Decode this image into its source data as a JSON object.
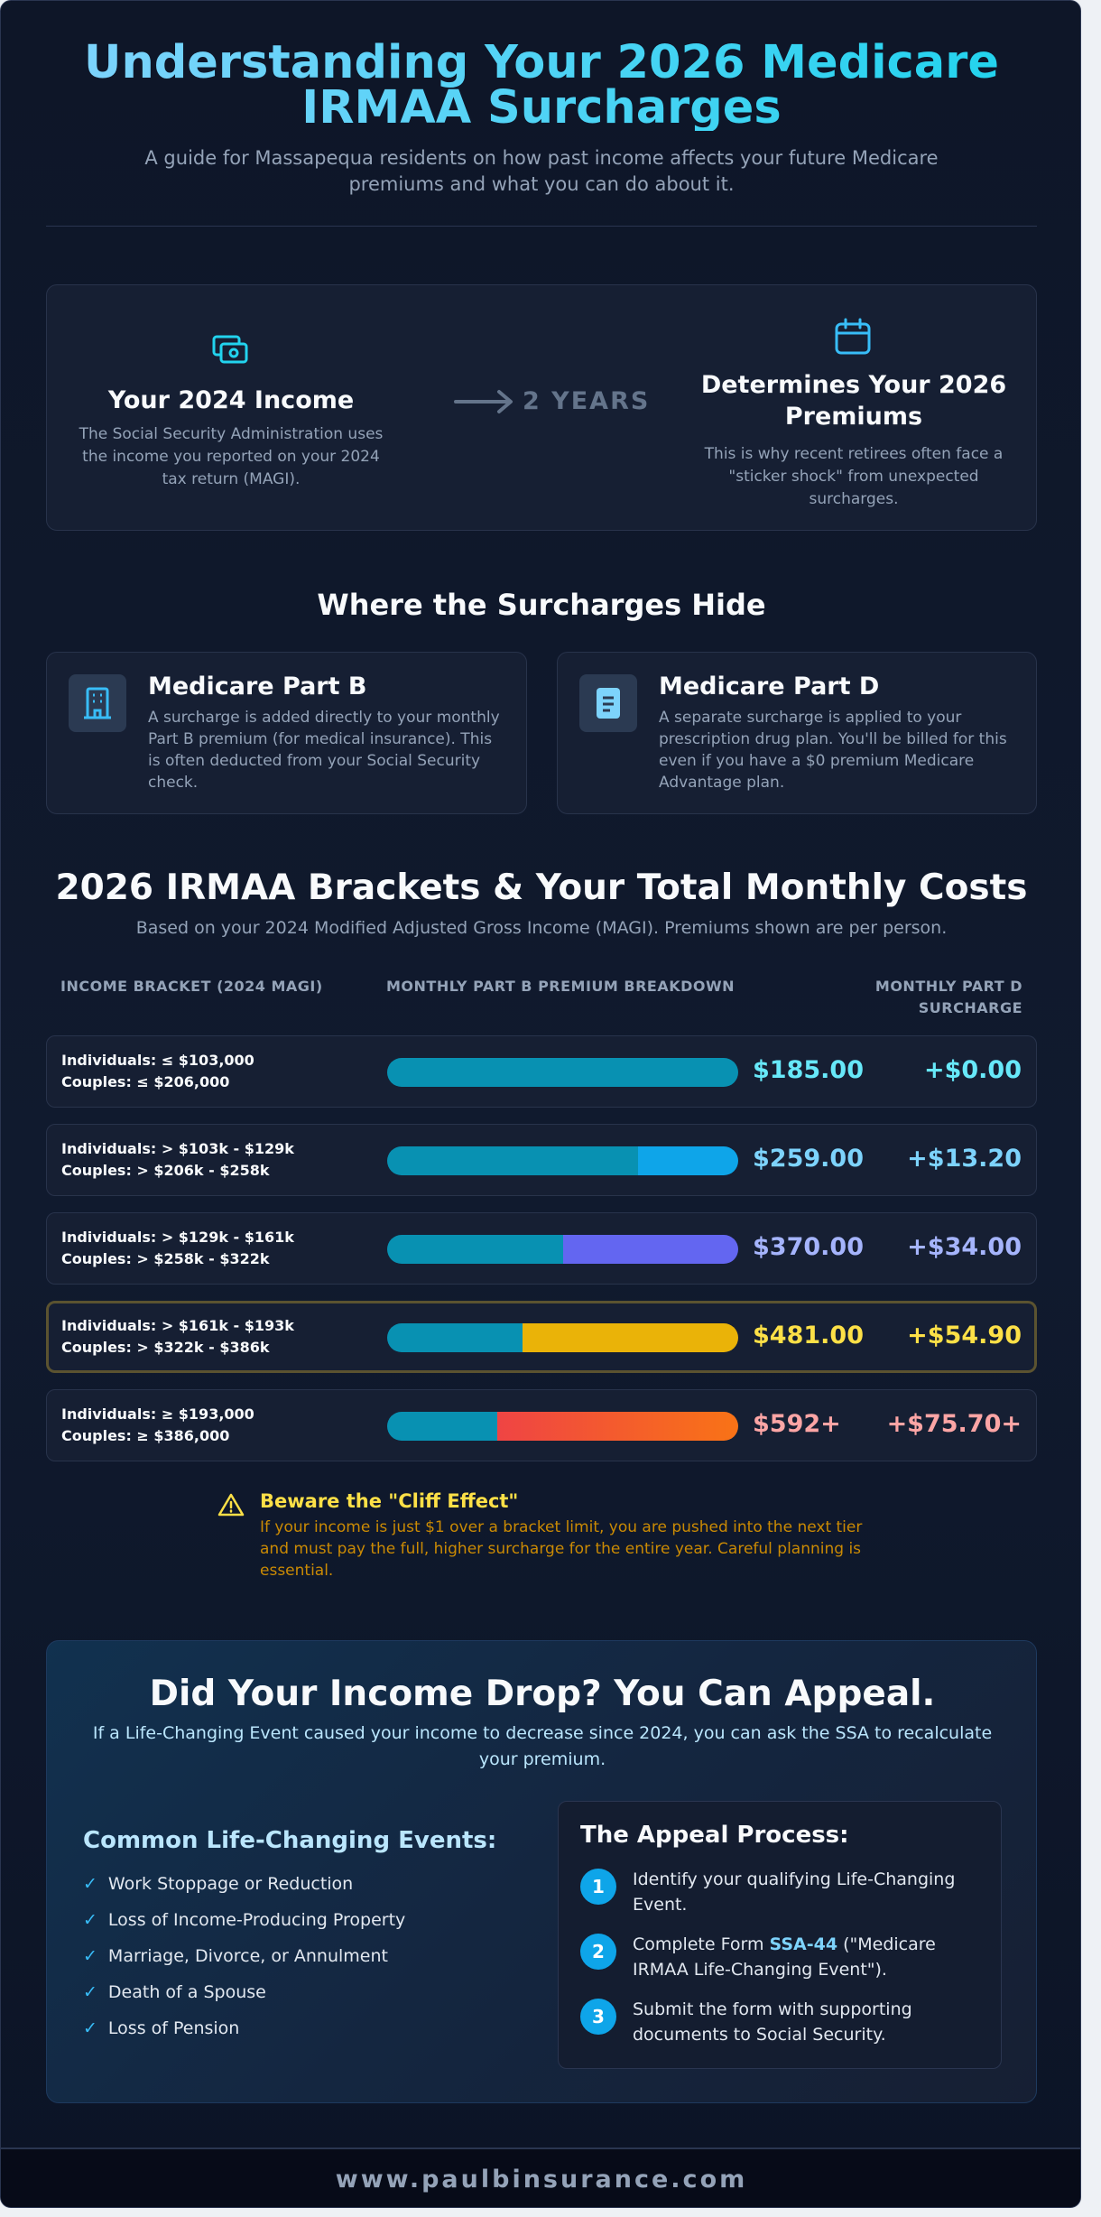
{
  "header": {
    "title": "Understanding Your 2026 Medicare IRMAA Surcharges",
    "subtitle": "A guide for Massapequa residents on how past income affects your future Medicare premiums and what you can do about it."
  },
  "timeline": {
    "income_title": "Your 2024 Income",
    "income_text": "The Social Security Administration uses the income you reported on your 2024 tax return (MAGI).",
    "arrow_label": "2 YEARS",
    "premiums_title": "Determines Your 2026 Premiums",
    "premiums_text": "This is why recent retirees often face a \"sticker shock\" from unexpected surcharges."
  },
  "hide": {
    "heading": "Where the Surcharges Hide",
    "cards": [
      {
        "title": "Medicare Part B",
        "text": "A surcharge is added directly to your monthly Part B premium (for medical insurance). This is often deducted from your Social Security check."
      },
      {
        "title": "Medicare Part D",
        "text": "A separate surcharge is applied to your prescription drug plan. You'll be billed for this even if you have a $0 premium Medicare Advantage plan."
      }
    ]
  },
  "brackets": {
    "heading": "2026 IRMAA Brackets & Your Total Monthly Costs",
    "subtitle": "Based on your 2024 Modified Adjusted Gross Income (MAGI). Premiums shown are per person.",
    "columns": [
      "INCOME BRACKET (2024 MAGI)",
      "MONTHLY PART B PREMIUM BREAKDOWN",
      "MONTHLY PART D SURCHARGE"
    ],
    "rows": [
      {
        "individuals": "Individuals: ≤ $103,000",
        "couples": "Couples: ≤ $206,000",
        "part_b": "$185.00",
        "part_d": "+$0.00"
      },
      {
        "individuals": "Individuals: > $103k - $129k",
        "couples": "Couples: > $206k - $258k",
        "part_b": "$259.00",
        "part_d": "+$13.20"
      },
      {
        "individuals": "Individuals: > $129k - $161k",
        "couples": "Couples: > $258k - $322k",
        "part_b": "$370.00",
        "part_d": "+$34.00"
      },
      {
        "individuals": "Individuals: > $161k - $193k",
        "couples": "Couples: > $322k - $386k",
        "part_b": "$481.00",
        "part_d": "+$54.90"
      },
      {
        "individuals": "Individuals: ≥ $193,000",
        "couples": "Couples: ≥ $386,000",
        "part_b": "$592+",
        "part_d": "+$75.70+"
      }
    ]
  },
  "cliff": {
    "title": "Beware the \"Cliff Effect\"",
    "text": "If your income is just $1 over a bracket limit, you are pushed into the next tier and must pay the full, higher surcharge for the entire year. Careful planning is essential."
  },
  "appeal": {
    "title": "Did Your Income Drop? You Can Appeal.",
    "text": "If a Life-Changing Event caused your income to decrease since 2024, you can ask the SSA to recalculate your premium.",
    "events_heading": "Common Life-Changing Events:",
    "events": [
      "Work Stoppage or Reduction",
      "Loss of Income-Producing Property",
      "Marriage, Divorce, or Annulment",
      "Death of a Spouse",
      "Loss of Pension"
    ],
    "process_heading": "The Appeal Process:",
    "steps": [
      {
        "number": 1,
        "parts": [
          "Identify your qualifying Life-Changing Event."
        ]
      },
      {
        "number": 2,
        "parts": [
          "Complete Form ",
          "SSA-44",
          " (\"Medicare IRMAA Life-Changing Event\")."
        ]
      },
      {
        "number": 3,
        "parts": [
          "Submit the form with supporting documents to Social Security."
        ]
      }
    ]
  },
  "footer": {
    "url": "www.paulbinsurance.com"
  }
}
